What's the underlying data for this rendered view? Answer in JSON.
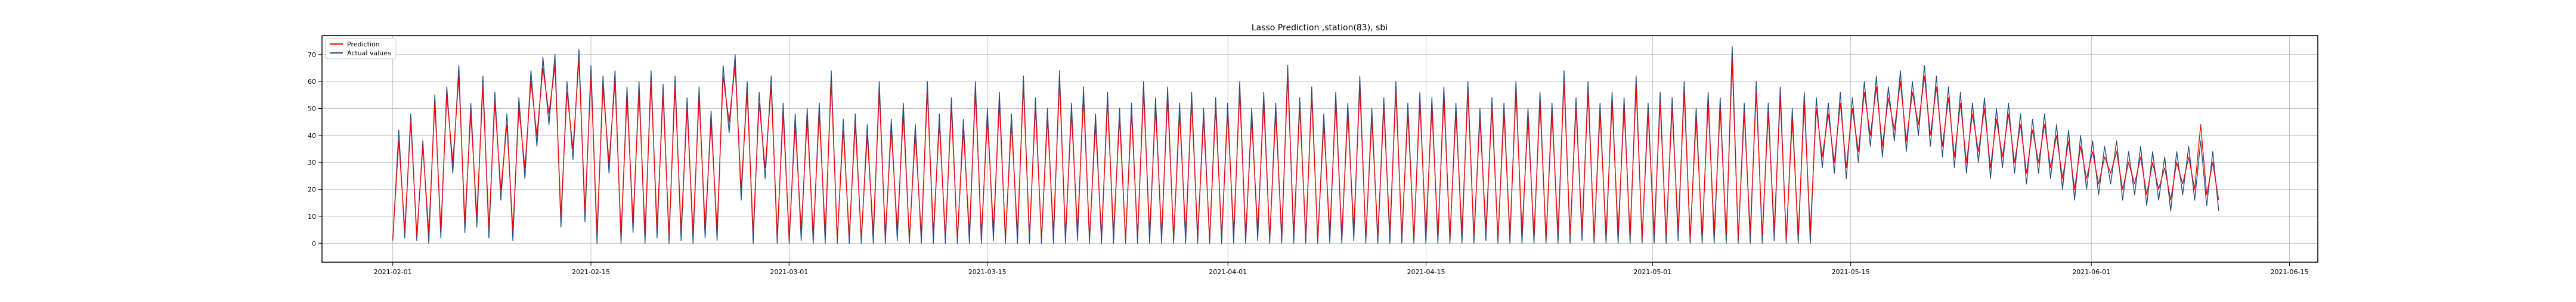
{
  "chart_data": {
    "type": "line",
    "title": "Lasso Prediction ,station(83), sbi",
    "xlabel": "",
    "ylabel": "",
    "xlim": [
      "2021-01-27",
      "2021-06-17"
    ],
    "ylim": [
      -7,
      77
    ],
    "x_ticks": [
      "2021-02-01",
      "2021-02-15",
      "2021-03-01",
      "2021-03-15",
      "2021-04-01",
      "2021-04-15",
      "2021-05-01",
      "2021-05-15",
      "2021-06-01",
      "2021-06-15"
    ],
    "y_ticks": [
      0,
      10,
      20,
      30,
      40,
      50,
      60,
      70
    ],
    "grid": true,
    "legend": "top-left",
    "data_start": "2021-02-01",
    "data_end": "2021-06-10",
    "series": [
      {
        "name": "Prediction",
        "color": "#ff0000",
        "values": [
          2,
          38,
          5,
          45,
          3,
          36,
          4,
          52,
          5,
          55,
          30,
          62,
          8,
          48,
          10,
          58,
          6,
          52,
          20,
          44,
          5,
          50,
          28,
          60,
          40,
          65,
          48,
          66,
          10,
          56,
          35,
          68,
          12,
          62,
          4,
          58,
          30,
          60,
          3,
          54,
          8,
          56,
          4,
          60,
          6,
          55,
          3,
          58,
          5,
          50,
          4,
          54,
          6,
          45,
          5,
          62,
          45,
          66,
          20,
          56,
          4,
          52,
          28,
          58,
          3,
          48,
          2,
          44,
          5,
          46,
          3,
          48,
          4,
          60,
          2,
          42,
          3,
          44,
          2,
          40,
          4,
          56,
          3,
          42,
          5,
          48,
          2,
          40,
          3,
          56,
          4,
          44,
          3,
          50,
          2,
          42,
          4,
          56,
          3,
          46,
          5,
          52,
          2,
          44,
          4,
          58,
          3,
          50,
          2,
          46,
          4,
          60,
          3,
          48,
          5,
          54,
          2,
          44,
          3,
          52,
          4,
          46,
          2,
          48,
          3,
          56,
          4,
          50,
          3,
          54,
          2,
          48,
          4,
          52,
          3,
          46,
          2,
          50,
          3,
          48,
          4,
          56,
          3,
          46,
          5,
          52,
          2,
          48,
          3,
          62,
          4,
          50,
          3,
          54,
          2,
          44,
          4,
          52,
          3,
          48,
          5,
          58,
          2,
          46,
          3,
          50,
          4,
          56,
          3,
          48,
          2,
          52,
          4,
          50,
          3,
          54,
          2,
          48,
          4,
          56,
          3,
          46,
          5,
          50,
          2,
          48,
          3,
          56,
          4,
          46,
          3,
          52,
          2,
          48,
          4,
          60,
          3,
          50,
          5,
          56,
          2,
          48,
          3,
          52,
          4,
          50,
          3,
          58,
          2,
          48,
          4,
          52,
          3,
          50,
          5,
          56,
          2,
          46,
          3,
          52,
          4,
          50,
          3,
          68,
          2,
          48,
          4,
          56,
          3,
          48,
          5,
          54,
          2,
          46,
          3,
          52,
          4,
          50,
          32,
          48,
          30,
          52,
          28,
          50,
          34,
          56,
          40,
          58,
          36,
          54,
          42,
          60,
          38,
          56,
          44,
          62,
          40,
          58,
          36,
          54,
          32,
          52,
          30,
          48,
          34,
          50,
          28,
          46,
          32,
          48,
          30,
          44,
          26,
          42,
          30,
          44,
          28,
          40,
          24,
          38,
          20,
          36,
          24,
          34,
          22,
          32,
          26,
          34,
          20,
          30,
          22,
          32,
          18,
          30,
          20,
          28,
          16,
          30,
          22,
          32,
          20,
          44,
          18,
          30,
          16
        ]
      },
      {
        "name": "Actual values",
        "color": "#1f4e8c",
        "values": [
          1,
          42,
          2,
          48,
          1,
          38,
          0,
          55,
          2,
          58,
          26,
          66,
          4,
          52,
          6,
          62,
          2,
          56,
          16,
          48,
          1,
          54,
          24,
          64,
          36,
          69,
          44,
          70,
          6,
          60,
          31,
          72,
          8,
          66,
          0,
          62,
          26,
          64,
          0,
          58,
          4,
          60,
          0,
          64,
          2,
          59,
          0,
          62,
          1,
          54,
          0,
          58,
          2,
          49,
          1,
          66,
          41,
          70,
          16,
          60,
          0,
          56,
          24,
          62,
          0,
          52,
          0,
          48,
          1,
          50,
          0,
          52,
          0,
          64,
          0,
          46,
          0,
          48,
          0,
          44,
          0,
          60,
          0,
          46,
          1,
          52,
          0,
          44,
          0,
          60,
          0,
          48,
          0,
          54,
          0,
          46,
          0,
          60,
          0,
          50,
          1,
          56,
          0,
          48,
          0,
          62,
          0,
          54,
          0,
          50,
          0,
          64,
          0,
          52,
          1,
          58,
          0,
          48,
          0,
          56,
          0,
          50,
          0,
          52,
          0,
          60,
          0,
          54,
          0,
          58,
          0,
          52,
          0,
          56,
          0,
          50,
          0,
          54,
          0,
          52,
          0,
          60,
          0,
          50,
          1,
          56,
          0,
          52,
          0,
          66,
          0,
          54,
          0,
          58,
          0,
          48,
          0,
          56,
          0,
          52,
          1,
          62,
          0,
          50,
          0,
          54,
          0,
          60,
          0,
          52,
          0,
          56,
          0,
          54,
          0,
          58,
          0,
          52,
          0,
          60,
          0,
          50,
          1,
          54,
          0,
          52,
          0,
          60,
          0,
          50,
          0,
          56,
          0,
          52,
          0,
          64,
          0,
          54,
          1,
          60,
          0,
          52,
          0,
          56,
          0,
          54,
          0,
          62,
          0,
          52,
          0,
          56,
          0,
          54,
          1,
          60,
          0,
          50,
          0,
          56,
          0,
          54,
          0,
          73,
          0,
          52,
          0,
          60,
          0,
          52,
          1,
          58,
          0,
          50,
          0,
          56,
          0,
          54,
          28,
          52,
          26,
          56,
          24,
          54,
          30,
          60,
          36,
          62,
          32,
          58,
          38,
          64,
          34,
          60,
          40,
          66,
          36,
          62,
          32,
          58,
          28,
          56,
          26,
          52,
          30,
          54,
          24,
          50,
          28,
          52,
          26,
          48,
          22,
          46,
          26,
          48,
          24,
          44,
          20,
          42,
          16,
          40,
          20,
          38,
          18,
          36,
          22,
          38,
          16,
          34,
          18,
          36,
          14,
          34,
          16,
          32,
          12,
          34,
          18,
          36,
          16,
          38,
          14,
          34,
          12
        ]
      }
    ]
  }
}
